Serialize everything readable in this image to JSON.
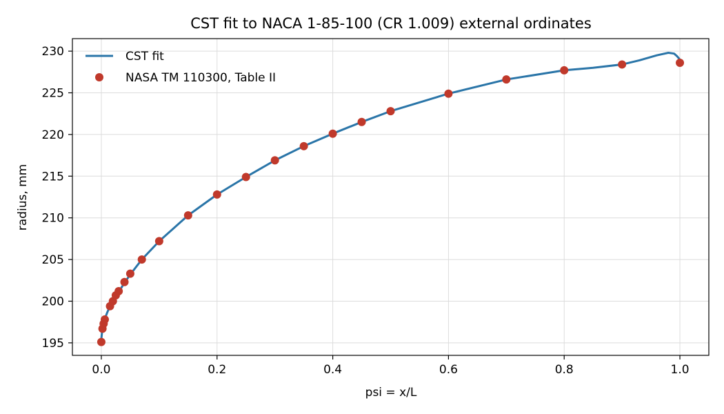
{
  "chart_data": {
    "type": "line",
    "title": "CST fit to NACA 1-85-100 (CR 1.009) external ordinates",
    "xlabel": "psi = x/L",
    "ylabel": "radius, mm",
    "xlim": [
      -0.05,
      1.05
    ],
    "ylim": [
      193.5,
      231.5
    ],
    "xticks": [
      0.0,
      0.2,
      0.4,
      0.6,
      0.8,
      1.0
    ],
    "xtick_labels": [
      "0.0",
      "0.2",
      "0.4",
      "0.6",
      "0.8",
      "1.0"
    ],
    "yticks": [
      195,
      200,
      205,
      210,
      215,
      220,
      225,
      230
    ],
    "ytick_labels": [
      "195",
      "200",
      "205",
      "210",
      "215",
      "220",
      "225",
      "230"
    ],
    "grid": true,
    "legend_position": "upper-left",
    "colors": {
      "fit": "#2a75a8",
      "points": "#c0392b"
    },
    "series": [
      {
        "name": "CST fit",
        "kind": "line",
        "x": [
          0.0,
          0.002,
          0.004,
          0.006,
          0.01,
          0.015,
          0.02,
          0.025,
          0.03,
          0.04,
          0.05,
          0.07,
          0.1,
          0.15,
          0.2,
          0.25,
          0.3,
          0.35,
          0.4,
          0.45,
          0.5,
          0.6,
          0.7,
          0.8,
          0.85,
          0.9,
          0.93,
          0.96,
          0.98,
          0.99,
          0.995,
          1.0
        ],
        "y": [
          195.5,
          196.8,
          197.4,
          197.9,
          198.6,
          199.4,
          200.0,
          200.6,
          201.1,
          202.2,
          203.2,
          205.0,
          207.2,
          210.3,
          212.8,
          214.9,
          216.9,
          218.6,
          220.1,
          221.5,
          222.8,
          224.9,
          226.6,
          227.7,
          228.0,
          228.4,
          228.9,
          229.5,
          229.8,
          229.7,
          229.4,
          229.0
        ]
      },
      {
        "name": "NASA TM 110300, Table II",
        "kind": "scatter",
        "x": [
          0.0,
          0.002,
          0.004,
          0.006,
          0.015,
          0.02,
          0.025,
          0.03,
          0.04,
          0.05,
          0.07,
          0.1,
          0.15,
          0.2,
          0.25,
          0.3,
          0.35,
          0.4,
          0.45,
          0.5,
          0.6,
          0.7,
          0.8,
          0.9,
          1.0
        ],
        "y": [
          195.1,
          196.7,
          197.3,
          197.8,
          199.4,
          200.0,
          200.7,
          201.2,
          202.3,
          203.3,
          205.0,
          207.2,
          210.3,
          212.8,
          214.9,
          216.9,
          218.6,
          220.1,
          221.5,
          222.8,
          224.9,
          226.6,
          227.7,
          228.4,
          228.6
        ]
      }
    ]
  }
}
